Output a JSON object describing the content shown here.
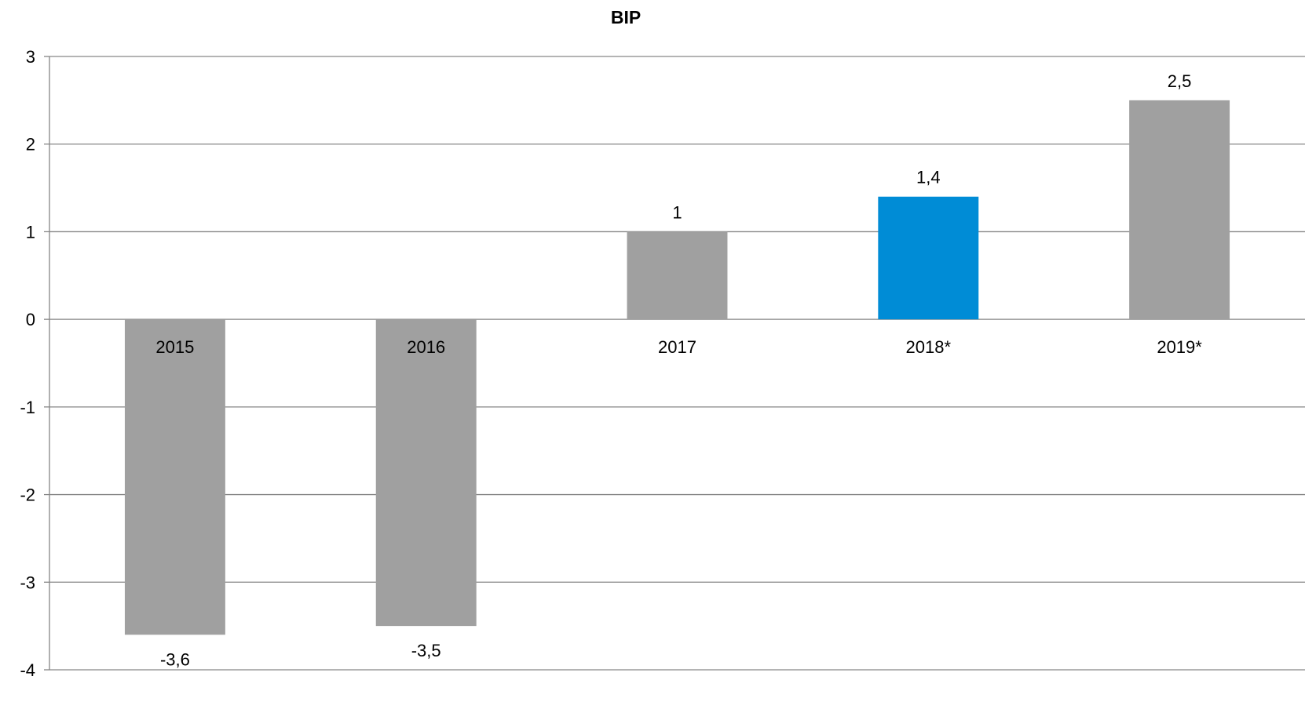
{
  "chart_data": {
    "type": "bar",
    "title": "BIP",
    "xlabel": "",
    "ylabel": "",
    "categories": [
      "2015",
      "2016",
      "2017",
      "2018*",
      "2019*"
    ],
    "values": [
      -3.6,
      -3.5,
      1,
      1.4,
      2.5
    ],
    "value_labels": [
      "-3,6",
      "-3,5",
      "1",
      "1,4",
      "2,5"
    ],
    "ylim": [
      -4,
      3
    ],
    "yticks": [
      3,
      2,
      1,
      0,
      -1,
      -2,
      -3,
      -4
    ],
    "ytick_labels": [
      "3",
      "2",
      "1",
      "0",
      "-1",
      "-2",
      "-3",
      "-4"
    ],
    "grid": true,
    "legend": false,
    "colors": {
      "default_bar": "#a0a0a0",
      "highlight_bar": "#008cd6",
      "gridline": "#868686"
    },
    "highlighted_category": "2018*"
  }
}
